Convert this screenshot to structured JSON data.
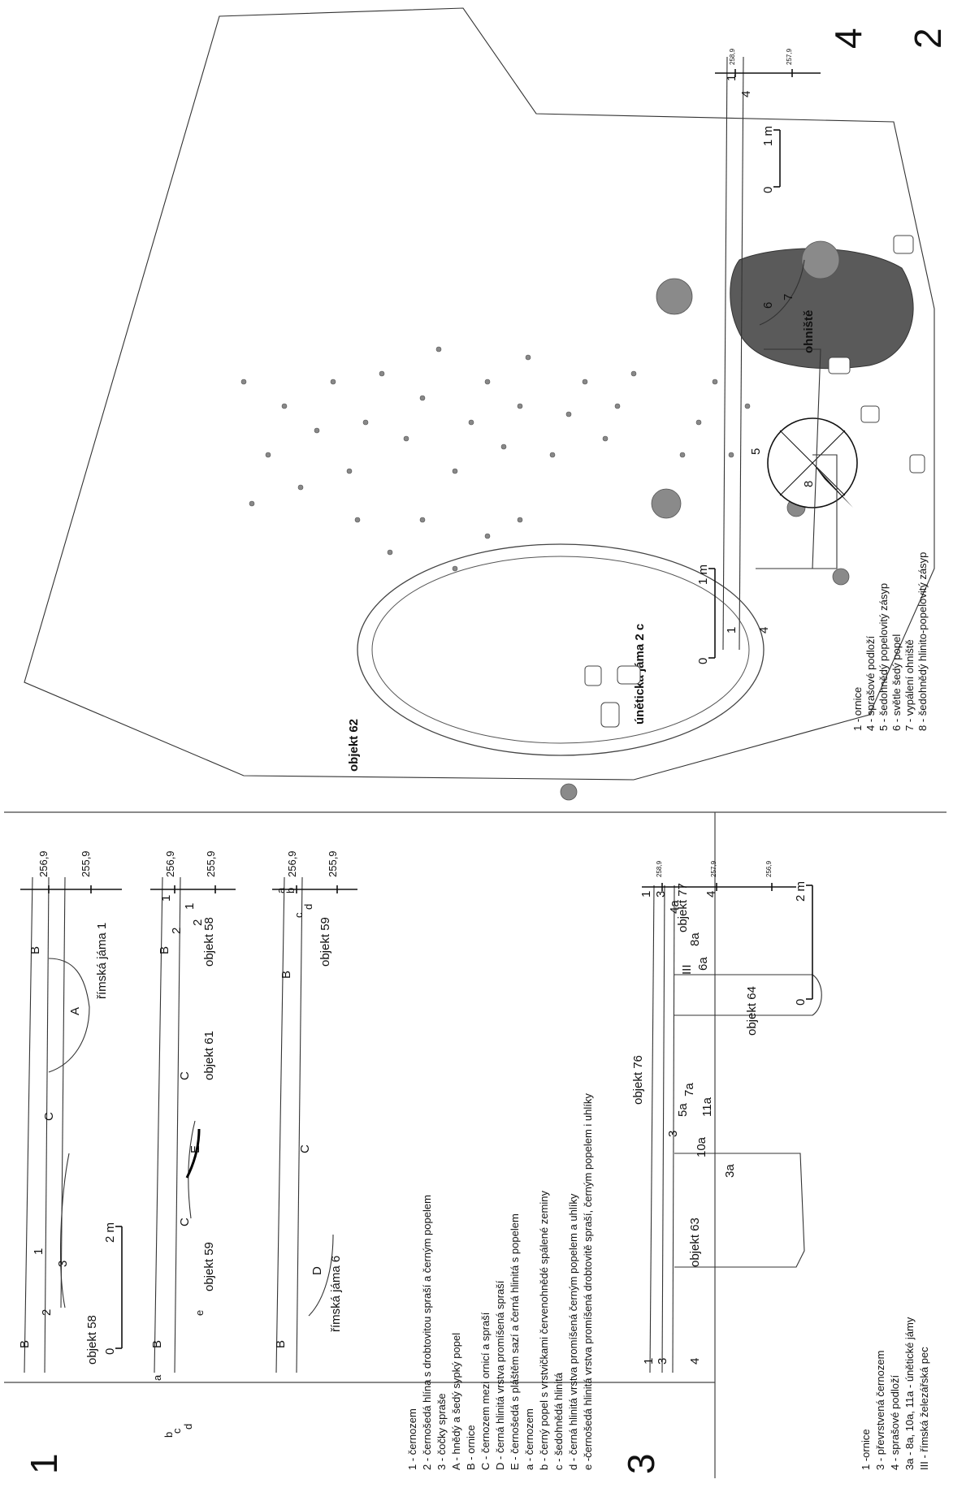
{
  "panels": {
    "p1": {
      "number": "1",
      "scale_label": "2 m",
      "scale_zero": "0",
      "elev_high": "256,9",
      "elev_low": "255,9",
      "row1": {
        "obj_a": "objekt 58",
        "obj_b": "římská jáma 1"
      },
      "row2": {
        "obj_a": "objekt 59",
        "obj_b": "objekt 61",
        "obj_c": "objekt 58"
      },
      "row3": {
        "obj_a": "římská jáma 6",
        "obj_b": "objekt 59"
      },
      "letters": {
        "A": "A",
        "B": "B",
        "C": "C",
        "D": "D",
        "E": "E",
        "a": "a",
        "b": "b",
        "c": "c",
        "d": "d",
        "e": "e",
        "n1": "1",
        "n2": "2",
        "n3": "3"
      },
      "legend": [
        "1 - černozem",
        "2 - černošedá hlína s drobtovitou spraší a černým popelem",
        "3 - čočky spraše",
        "A - hnědý a šedý sypký popel",
        "B - ornice",
        "C - černozem mezi ornicí a spraší",
        "D - černá hlinitá vrstva promíšená spraší",
        "E - černošedá s pláštěm sazí a černá hlinitá s popelem",
        "a - černozem",
        "b - černý popel s vrstvičkami červenohnědé spálené zeminy",
        "c - šedohnědá hlinitá",
        "d - černá hlinitá vrstva promíšená černým popelem a uhlíky",
        "e -černošedá hlinitá vrstva promíšená drobtovitě spraší, černým popelem i uhlíky"
      ]
    },
    "p2": {
      "number": "2",
      "pit_label": "únětická jáma 2 c",
      "hearth_label": "ohniště",
      "object_label": "objekt 62"
    },
    "p3": {
      "number": "3",
      "scale_label": "2 m",
      "scale_zero": "0",
      "elevations": [
        "258,9",
        "257,9",
        "256,9"
      ],
      "labels": {
        "obj76": "objekt 76",
        "obj77": "objekt 77",
        "obj64": "objekt 64",
        "obj63": "objekt 63",
        "l3a": "3a",
        "l10a": "10a",
        "l5a": "5a",
        "l7a": "7a",
        "l11a": "11a",
        "l6a": "6a",
        "l8a": "8a",
        "l4a": "4a",
        "lIII": "III",
        "n1": "1",
        "n3": "3",
        "n4": "4"
      },
      "legend": [
        "1 -ornice",
        "3 - převrstvená černozem",
        "4 - sprašové podloží",
        "3a - 8a, 10a, 11a - únětické jámy",
        "III - římská železářská pec"
      ]
    },
    "p4": {
      "number": "4",
      "scale_label": "1 m",
      "scale_zero": "0",
      "scale2_label": "1 m",
      "scale2_zero": "0",
      "elevations": [
        "258,9",
        "257,9"
      ],
      "labels": {
        "n1": "1",
        "n4": "4",
        "n5": "5",
        "n6": "6",
        "n7": "7",
        "n8": "8"
      },
      "legend": [
        "1 - ornice",
        "4 - sprašové podloží",
        "5 - šedohnědý popelovitý zásyp",
        "6 - světle šedý popel",
        "7 - vypálení ohniště",
        "8 - šedohnědý hlinito-popelovitý zásyp"
      ]
    }
  }
}
